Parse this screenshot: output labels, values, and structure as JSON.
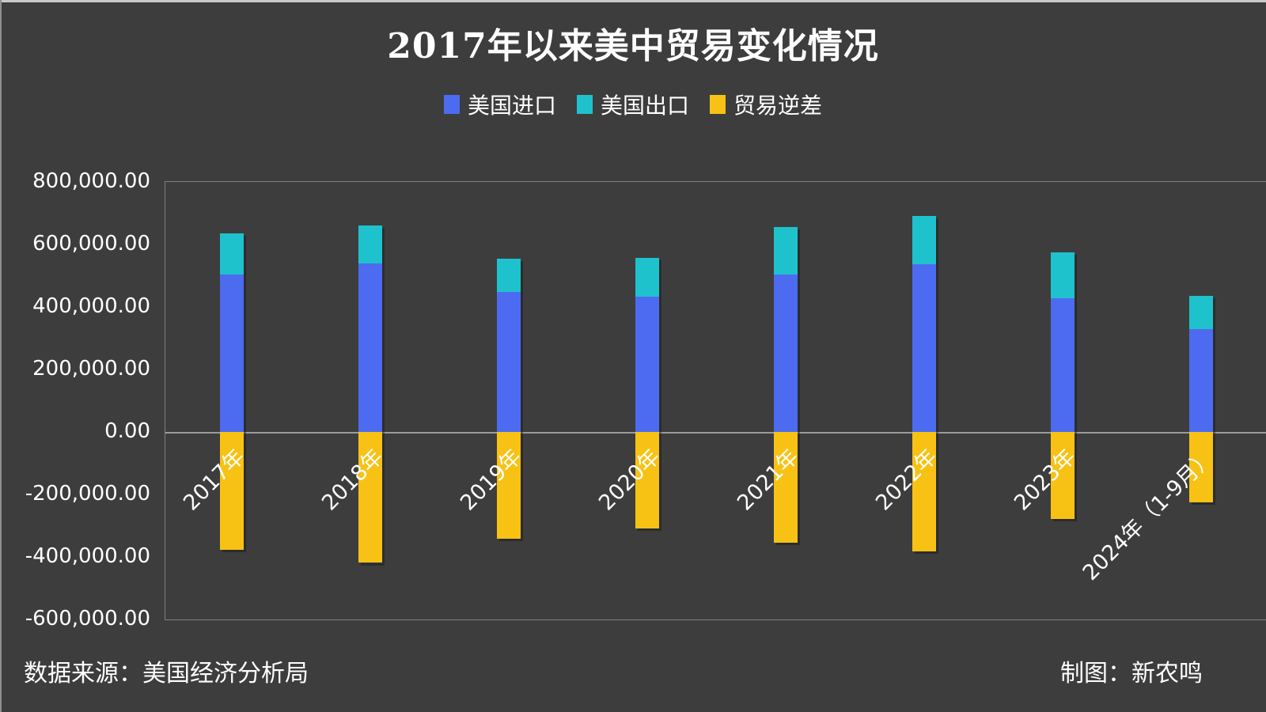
{
  "title": "2017年以来美中贸易变化情况",
  "legend": [
    {
      "label": "美国进口",
      "color": "#4d6bf0"
    },
    {
      "label": "美国出口",
      "color": "#1ec2cd"
    },
    {
      "label": "贸易逆差",
      "color": "#f8c215"
    }
  ],
  "footer": {
    "source": "数据来源：美国经济分析局",
    "credit": "制图：新农鸣"
  },
  "chart_data": {
    "type": "bar",
    "stacked": true,
    "title": "2017年以来美中贸易变化情况",
    "xlabel": "",
    "ylabel": "",
    "legend_position": "top",
    "grid": "zero line plus top and bottom plot borders only",
    "background": "#3d3d3d",
    "categories": [
      "2017年",
      "2018年",
      "2019年",
      "2020年",
      "2021年",
      "2022年",
      "2023年",
      "2024年（1-9月）"
    ],
    "series": [
      {
        "name": "美国进口",
        "color": "#4d6bf0",
        "values": [
          505000,
          540000,
          449000,
          433000,
          505000,
          536000,
          427000,
          330000
        ]
      },
      {
        "name": "美国出口",
        "color": "#1ec2cd",
        "values": [
          130000,
          120000,
          106000,
          124000,
          151000,
          154000,
          148000,
          105000
        ]
      },
      {
        "name": "贸易逆差",
        "color": "#f8c215",
        "values": [
          -376000,
          -419000,
          -343000,
          -308000,
          -354000,
          -382000,
          -279000,
          -225000
        ]
      }
    ],
    "ylim": [
      -600000,
      800000
    ],
    "ytick_step": 200000,
    "yticks": [
      {
        "value": 800000,
        "label": "800,000.00"
      },
      {
        "value": 600000,
        "label": "600,000.00"
      },
      {
        "value": 400000,
        "label": "400,000.00"
      },
      {
        "value": 200000,
        "label": "200,000.00"
      },
      {
        "value": 0,
        "label": "0.00"
      },
      {
        "value": -200000,
        "label": "-200,000.00"
      },
      {
        "value": -400000,
        "label": "-400,000.00"
      },
      {
        "value": -600000,
        "label": "-600,000.00"
      }
    ]
  }
}
